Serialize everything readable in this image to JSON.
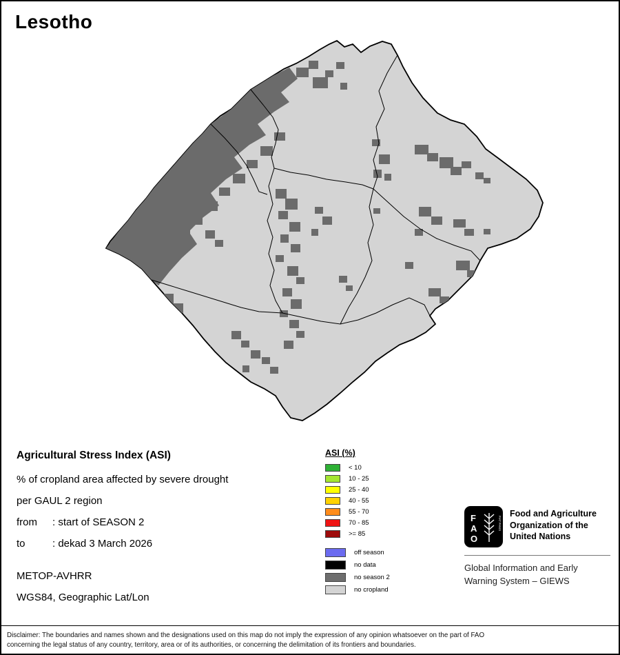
{
  "title": "Lesotho",
  "info": {
    "heading": "Agricultural Stress Index (ASI)",
    "subtitle1": "% of cropland area affected by severe drought",
    "subtitle2": "per GAUL 2 region",
    "from_label": "from",
    "from_value": ": start of SEASON 2",
    "to_label": "to",
    "to_value": ": dekad 3 March 2026",
    "sensor": "METOP-AVHRR",
    "projection": "WGS84, Geographic Lat/Lon"
  },
  "legend": {
    "title": "ASI (%)",
    "classes": [
      {
        "label": "< 10",
        "color": "#2eb135"
      },
      {
        "label": "10 - 25",
        "color": "#a5e632"
      },
      {
        "label": "25 - 40",
        "color": "#ffff00"
      },
      {
        "label": "40 - 55",
        "color": "#ffd200"
      },
      {
        "label": "55 - 70",
        "color": "#ff8c1a"
      },
      {
        "label": "70 - 85",
        "color": "#f01414"
      },
      {
        "label": ">= 85",
        "color": "#9e0b0b"
      }
    ],
    "status": [
      {
        "label": "off season",
        "color": "#6b6bf0"
      },
      {
        "label": "no data",
        "color": "#000000"
      },
      {
        "label": "no season 2",
        "color": "#6e6e6e"
      },
      {
        "label": "no cropland",
        "color": "#d4d4d4"
      }
    ]
  },
  "map": {
    "country_fill": "#d4d4d4",
    "no_season_fill": "#6b6b6b",
    "boundary_color": "#000000"
  },
  "fao": {
    "logo_letters": [
      "F",
      "A",
      "O"
    ],
    "motto": "FIAT PANIS",
    "org_lines": [
      "Food and Agriculture",
      "Organization of the",
      "United Nations"
    ],
    "giews_lines": [
      "Global Information and Early",
      "Warning System – GIEWS"
    ]
  },
  "disclaimer_lines": [
    "Disclaimer: The boundaries and names shown and the designations used on this map do not imply the expression of any opinion whatsoever on the part of FAO",
    "concerning the legal status of any country, territory, area or of its authorities, or concerning the delimitation of its frontiers and boundaries."
  ]
}
